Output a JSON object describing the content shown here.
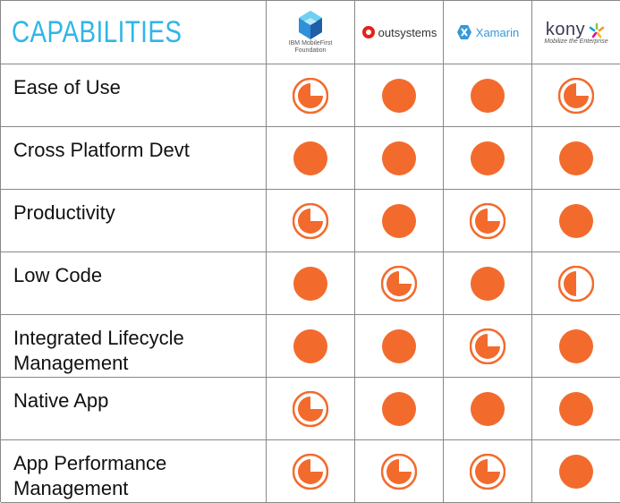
{
  "header": {
    "title": "CAPABILITIES",
    "vendors": [
      {
        "line1": "IBM MobileFirst",
        "line2": "Foundation",
        "icon": "ibm-mobilefirst-logo-icon"
      },
      {
        "name": "outsystems",
        "icon": "outsystems-logo-icon"
      },
      {
        "name": "Xamarin",
        "icon": "xamarin-logo-icon"
      },
      {
        "name": "kony",
        "tagline": "Mobilize the Enterprise",
        "icon": "kony-logo-icon"
      }
    ]
  },
  "colors": {
    "title": "#2fb6e8",
    "rating": "#f26b2d",
    "border": "#888888"
  },
  "rows": [
    {
      "label": "Ease of Use",
      "ratings": [
        0.75,
        1,
        1,
        0.75
      ]
    },
    {
      "label": "Cross Platform Devt",
      "ratings": [
        1,
        1,
        1,
        1
      ]
    },
    {
      "label": "Productivity",
      "ratings": [
        0.75,
        1,
        0.75,
        1
      ]
    },
    {
      "label": "Low Code",
      "ratings": [
        1,
        0.75,
        1,
        0.5
      ]
    },
    {
      "label": "Integrated Lifecycle Management",
      "ratings": [
        1,
        1,
        0.75,
        1
      ]
    },
    {
      "label": "Native App",
      "ratings": [
        0.75,
        1,
        1,
        1
      ]
    },
    {
      "label": "App Performance Management",
      "ratings": [
        0.75,
        0.75,
        0.75,
        1
      ]
    }
  ]
}
